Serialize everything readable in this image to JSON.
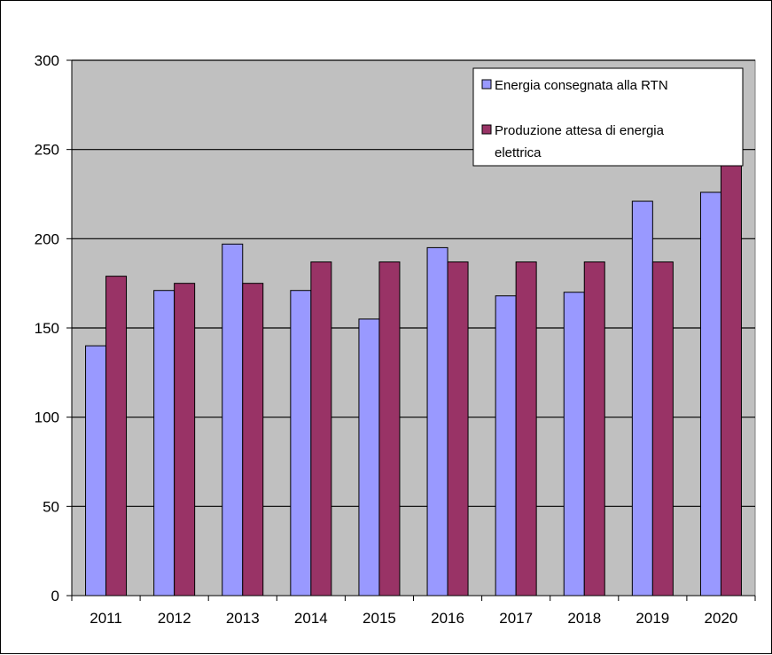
{
  "chart_data": {
    "type": "bar",
    "categories": [
      "2011",
      "2012",
      "2013",
      "2014",
      "2015",
      "2016",
      "2017",
      "2018",
      "2019",
      "2020"
    ],
    "series": [
      {
        "name": "Energia consegnata alla RTN",
        "color": "#9999ff",
        "values": [
          140,
          171,
          197,
          171,
          155,
          195,
          168,
          170,
          221,
          226
        ]
      },
      {
        "name": "Produzione attesa di energia elettrica",
        "name_lines": [
          "Produzione attesa di energia",
          "elettrica"
        ],
        "color": "#993366",
        "values": [
          179,
          175,
          175,
          187,
          187,
          187,
          187,
          187,
          187,
          249
        ]
      }
    ],
    "ylim": [
      0,
      300
    ],
    "yticks": [
      "0",
      "50",
      "100",
      "150",
      "200",
      "250",
      "300"
    ],
    "title": "",
    "xlabel": "",
    "ylabel": "",
    "grid": true,
    "legend_position": "top-right",
    "plot_background": "#c0c0c0"
  }
}
